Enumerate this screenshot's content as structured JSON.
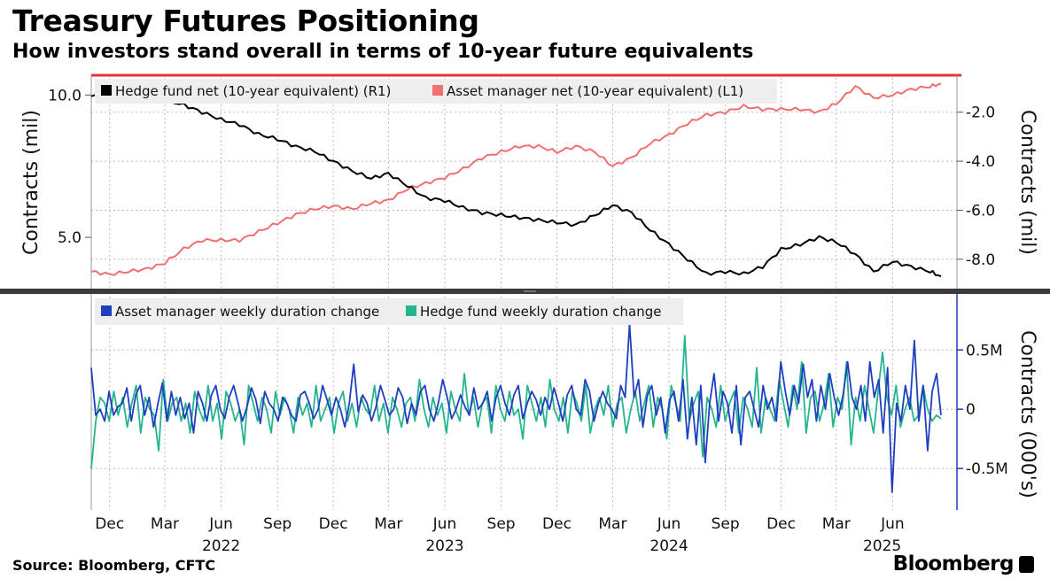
{
  "header": {
    "title": "Treasury Futures Positioning",
    "subtitle": "How investors stand overall in terms of 10-year future equivalents"
  },
  "footer": {
    "source": "Source: Bloomberg, CFTC",
    "brand": "Bloomberg"
  },
  "colors": {
    "hedge_net": "#000000",
    "asset_net": "#f07070",
    "asset_weekly": "#1f3fbf",
    "hedge_weekly": "#25b58e",
    "top_rule": "#e2333a",
    "grid": "#bbbbbb"
  },
  "chart_data": [
    {
      "type": "line",
      "panel": "top",
      "x_start": "2021-11-01",
      "x_end": "2025-08-19",
      "left_axis": {
        "label": "Contracts (mil)",
        "ticks": [
          "5.0",
          "10.0"
        ],
        "range": [
          3.2,
          10.6
        ]
      },
      "right_axis": {
        "label": "Contracts (mil)",
        "ticks": [
          "-8.0",
          "-6.0",
          "-4.0",
          "-2.0"
        ],
        "range": [
          -9.2,
          -0.6
        ]
      },
      "legend": [
        "Hedge fund net (10-year equivalent) (R1)",
        "Asset manager net (10-year equivalent) (L1)"
      ],
      "series": [
        {
          "name": "Hedge fund net (10-year equivalent) (R1)",
          "axis": "right",
          "points": [
            [
              "2021-11-01",
              -1.35
            ],
            [
              "2021-12-01",
              -1.3
            ],
            [
              "2022-01-01",
              -1.0
            ],
            [
              "2022-02-01",
              -1.1
            ],
            [
              "2022-03-01",
              -1.5
            ],
            [
              "2022-04-01",
              -1.7
            ],
            [
              "2022-05-01",
              -2.0
            ],
            [
              "2022-06-01",
              -2.3
            ],
            [
              "2022-07-01",
              -2.5
            ],
            [
              "2022-08-01",
              -2.9
            ],
            [
              "2022-09-01",
              -3.1
            ],
            [
              "2022-10-01",
              -3.4
            ],
            [
              "2022-11-01",
              -3.6
            ],
            [
              "2022-12-01",
              -4.0
            ],
            [
              "2023-01-01",
              -4.4
            ],
            [
              "2023-02-01",
              -4.7
            ],
            [
              "2023-03-01",
              -4.5
            ],
            [
              "2023-04-01",
              -5.0
            ],
            [
              "2023-05-01",
              -5.5
            ],
            [
              "2023-06-01",
              -5.6
            ],
            [
              "2023-07-01",
              -5.9
            ],
            [
              "2023-08-01",
              -6.1
            ],
            [
              "2023-09-01",
              -6.2
            ],
            [
              "2023-10-01",
              -6.3
            ],
            [
              "2023-11-01",
              -6.4
            ],
            [
              "2023-12-01",
              -6.5
            ],
            [
              "2024-01-01",
              -6.6
            ],
            [
              "2024-02-01",
              -6.2
            ],
            [
              "2024-03-01",
              -5.8
            ],
            [
              "2024-04-01",
              -6.1
            ],
            [
              "2024-05-01",
              -6.8
            ],
            [
              "2024-06-01",
              -7.4
            ],
            [
              "2024-07-01",
              -8.0
            ],
            [
              "2024-08-01",
              -8.6
            ],
            [
              "2024-09-01",
              -8.5
            ],
            [
              "2024-10-01",
              -8.6
            ],
            [
              "2024-11-01",
              -8.3
            ],
            [
              "2024-12-01",
              -7.6
            ],
            [
              "2025-01-01",
              -7.4
            ],
            [
              "2025-02-01",
              -7.1
            ],
            [
              "2025-03-01",
              -7.3
            ],
            [
              "2025-04-01",
              -7.8
            ],
            [
              "2025-05-01",
              -8.5
            ],
            [
              "2025-06-01",
              -8.1
            ],
            [
              "2025-07-01",
              -8.3
            ],
            [
              "2025-08-01",
              -8.5
            ],
            [
              "2025-08-19",
              -8.7
            ]
          ]
        },
        {
          "name": "Asset manager net (10-year equivalent) (L1)",
          "axis": "left",
          "points": [
            [
              "2021-11-01",
              3.8
            ],
            [
              "2021-12-01",
              3.7
            ],
            [
              "2022-01-01",
              3.8
            ],
            [
              "2022-02-01",
              3.9
            ],
            [
              "2022-03-01",
              4.1
            ],
            [
              "2022-04-01",
              4.6
            ],
            [
              "2022-05-01",
              4.9
            ],
            [
              "2022-06-01",
              4.9
            ],
            [
              "2022-07-01",
              4.9
            ],
            [
              "2022-08-01",
              5.2
            ],
            [
              "2022-09-01",
              5.5
            ],
            [
              "2022-10-01",
              5.8
            ],
            [
              "2022-11-01",
              6.0
            ],
            [
              "2022-12-01",
              6.1
            ],
            [
              "2023-01-01",
              6.0
            ],
            [
              "2023-02-01",
              6.2
            ],
            [
              "2023-03-01",
              6.3
            ],
            [
              "2023-04-01",
              6.7
            ],
            [
              "2023-05-01",
              6.9
            ],
            [
              "2023-06-01",
              7.1
            ],
            [
              "2023-07-01",
              7.4
            ],
            [
              "2023-08-01",
              7.8
            ],
            [
              "2023-09-01",
              8.0
            ],
            [
              "2023-10-01",
              8.2
            ],
            [
              "2023-11-01",
              8.2
            ],
            [
              "2023-12-01",
              8.0
            ],
            [
              "2024-01-01",
              8.2
            ],
            [
              "2024-02-01",
              8.0
            ],
            [
              "2024-03-01",
              7.5
            ],
            [
              "2024-04-01",
              7.8
            ],
            [
              "2024-05-01",
              8.3
            ],
            [
              "2024-06-01",
              8.6
            ],
            [
              "2024-07-01",
              9.0
            ],
            [
              "2024-08-01",
              9.3
            ],
            [
              "2024-09-01",
              9.4
            ],
            [
              "2024-10-01",
              9.6
            ],
            [
              "2024-11-01",
              9.5
            ],
            [
              "2024-12-01",
              9.5
            ],
            [
              "2025-01-01",
              9.5
            ],
            [
              "2025-02-01",
              9.4
            ],
            [
              "2025-03-01",
              9.7
            ],
            [
              "2025-04-01",
              10.3
            ],
            [
              "2025-05-01",
              9.9
            ],
            [
              "2025-06-01",
              10.0
            ],
            [
              "2025-07-01",
              10.2
            ],
            [
              "2025-08-01",
              10.3
            ],
            [
              "2025-08-19",
              10.4
            ]
          ]
        }
      ]
    },
    {
      "type": "line",
      "panel": "bottom",
      "x_start": "2021-11-01",
      "x_end": "2025-08-19",
      "right_axis": {
        "label": "Contracts (000's)",
        "ticks": [
          "-0.5M",
          "0",
          "0.5M"
        ],
        "range": [
          -0.85,
          0.95
        ]
      },
      "legend": [
        "Asset manager weekly duration change",
        "Hedge fund weekly duration change"
      ],
      "x_tick_labels": [
        "Dec",
        "Mar",
        "Jun",
        "Sep",
        "Dec",
        "Mar",
        "Jun",
        "Sep",
        "Dec",
        "Mar",
        "Jun",
        "Sep",
        "Dec",
        "Mar",
        "Jun"
      ],
      "x_tick_dates": [
        "2021-12-01",
        "2022-03-01",
        "2022-06-01",
        "2022-09-01",
        "2022-12-01",
        "2023-03-01",
        "2023-06-01",
        "2023-09-01",
        "2023-12-01",
        "2024-03-01",
        "2024-06-01",
        "2024-09-01",
        "2024-12-01",
        "2025-03-01",
        "2025-06-01"
      ],
      "year_labels": [
        [
          "2022",
          "2022-06-01"
        ],
        [
          "2023",
          "2023-06-01"
        ],
        [
          "2024",
          "2024-06-01"
        ],
        [
          "2025",
          "2025-05-15"
        ]
      ],
      "series": [
        {
          "name": "Asset manager weekly duration change",
          "values": [
            0.35,
            -0.05,
            0.0,
            -0.1,
            0.15,
            -0.05,
            0.02,
            0.05,
            0.18,
            -0.1,
            0.12,
            0.2,
            -0.05,
            0.1,
            -0.15,
            0.05,
            0.22,
            -0.1,
            0.15,
            -0.05,
            0.1,
            -0.08,
            0.05,
            -0.2,
            0.15,
            0.05,
            -0.1,
            0.12,
            0.2,
            0.0,
            -0.08,
            0.1,
            0.2,
            0.05,
            -0.1,
            0.02,
            0.18,
            0.08,
            -0.12,
            0.15,
            0.05,
            0.0,
            -0.1,
            0.1,
            0.05,
            -0.05,
            -0.1,
            0.12,
            0.15,
            0.05,
            -0.08,
            0.0,
            0.2,
            0.08,
            -0.05,
            0.1,
            0.0,
            -0.15,
            0.05,
            0.38,
            -0.02,
            0.12,
            0.05,
            -0.1,
            0.02,
            0.2,
            0.08,
            -0.05,
            0.0,
            0.18,
            0.1,
            -0.12,
            0.05,
            -0.05,
            0.15,
            0.2,
            0.0,
            -0.1,
            0.05,
            0.25,
            0.1,
            -0.08,
            0.0,
            0.12,
            0.02,
            -0.05,
            0.18,
            0.0,
            0.05,
            0.15,
            -0.1,
            0.1,
            0.2,
            0.05,
            -0.05,
            0.12,
            0.2,
            -0.08,
            0.05,
            0.15,
            0.08,
            -0.05,
            0.1,
            0.0,
            0.18,
            0.05,
            -0.1,
            0.12,
            0.2,
            0.0,
            -0.05,
            0.25,
            0.15,
            -0.1,
            0.05,
            0.15,
            0.05,
            0.0,
            -0.08,
            0.2,
            0.1,
            0.72,
            0.1,
            0.25,
            -0.15,
            0.12,
            0.2,
            -0.05,
            0.1,
            -0.2,
            0.08,
            0.15,
            -0.1,
            0.25,
            -0.25,
            0.1,
            -0.3,
            0.2,
            -0.45,
            0.05,
            0.3,
            -0.1,
            0.15,
            0.05,
            -0.2,
            0.2,
            -0.3,
            0.1,
            0.15,
            0.0,
            -0.15,
            0.2,
            0.0,
            0.1,
            -0.1,
            0.4,
            0.15,
            -0.05,
            0.2,
            0.05,
            0.38,
            0.1,
            0.25,
            -0.1,
            0.2,
            0.0,
            0.3,
            0.1,
            -0.05,
            0.12,
            0.4,
            0.1,
            0.0,
            0.2,
            -0.1,
            0.4,
            0.1,
            0.25,
            -0.2,
            0.35,
            -0.7,
            0.05,
            -0.1,
            0.2,
            0.0,
            0.58,
            -0.1,
            0.2,
            -0.35,
            0.15,
            0.3,
            -0.05
          ]
        },
        {
          "name": "Hedge fund weekly duration change",
          "values": [
            -0.5,
            -0.1,
            0.1,
            0.05,
            -0.1,
            0.15,
            -0.05,
            0.1,
            -0.15,
            0.05,
            0.2,
            -0.2,
            0.1,
            0.0,
            -0.05,
            -0.35,
            0.25,
            -0.1,
            0.05,
            0.1,
            -0.1,
            0.05,
            -0.2,
            0.15,
            0.0,
            -0.1,
            0.2,
            -0.1,
            0.05,
            -0.25,
            0.15,
            0.05,
            -0.1,
            0.0,
            -0.3,
            0.2,
            0.05,
            -0.1,
            0.1,
            0.0,
            -0.2,
            0.15,
            -0.05,
            0.1,
            0.0,
            -0.2,
            0.1,
            -0.05,
            0.05,
            -0.15,
            0.2,
            -0.1,
            0.0,
            0.1,
            -0.2,
            0.05,
            0.15,
            -0.1,
            0.05,
            -0.15,
            0.1,
            0.0,
            -0.05,
            0.2,
            -0.1,
            0.05,
            -0.2,
            0.1,
            0.0,
            -0.15,
            0.05,
            0.1,
            -0.1,
            0.25,
            0.0,
            -0.15,
            0.1,
            -0.05,
            0.05,
            -0.2,
            0.15,
            0.0,
            -0.1,
            0.3,
            -0.05,
            0.1,
            -0.15,
            0.05,
            0.1,
            -0.2,
            0.2,
            0.0,
            -0.1,
            0.15,
            -0.05,
            0.0,
            -0.25,
            0.2,
            0.05,
            -0.1,
            0.1,
            -0.15,
            0.25,
            0.0,
            -0.1,
            0.1,
            -0.2,
            0.15,
            0.05,
            -0.1,
            0.2,
            -0.2,
            0.0,
            0.1,
            -0.05,
            0.2,
            -0.15,
            0.05,
            0.1,
            -0.2,
            0.0,
            0.15,
            -0.1,
            0.05,
            0.2,
            -0.15,
            0.1,
            0.0,
            -0.25,
            0.2,
            0.05,
            -0.1,
            0.62,
            -0.1,
            0.05,
            0.15,
            -0.4,
            0.1,
            0.0,
            -0.15,
            0.2,
            -0.1,
            0.05,
            0.15,
            -0.2,
            0.1,
            0.0,
            -0.15,
            0.35,
            -0.2,
            0.1,
            0.0,
            -0.1,
            0.25,
            0.05,
            -0.15,
            0.2,
            0.0,
            0.4,
            -0.2,
            0.1,
            0.15,
            -0.1,
            0.05,
            0.3,
            -0.15,
            0.1,
            0.0,
            0.4,
            -0.3,
            0.1,
            -0.1,
            0.2,
            0.0,
            -0.2,
            0.15,
            0.48,
            0.1,
            -0.05,
            0.2,
            -0.15,
            0.0,
            0.1,
            -0.1,
            -0.05,
            0.2,
            0.0,
            -0.1,
            -0.05,
            -0.08
          ]
        }
      ]
    }
  ]
}
